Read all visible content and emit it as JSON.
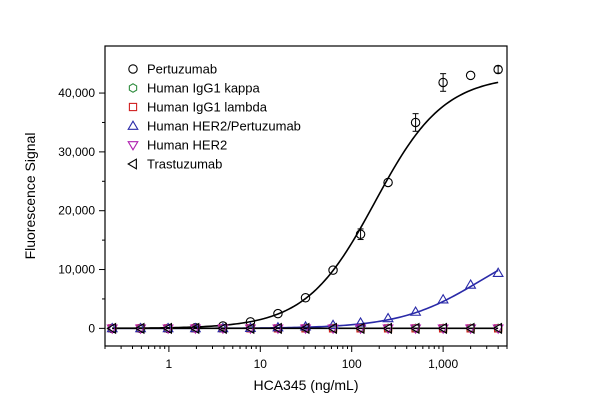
{
  "chart_data": {
    "type": "scatter",
    "xlabel": "HCA345 (ng/mL)",
    "ylabel": "Fluorescence Signal",
    "xscale": "log",
    "xlim": [
      0.2,
      5000
    ],
    "ylim": [
      -3000,
      48000
    ],
    "x_ticks": [
      1,
      10,
      100,
      1000
    ],
    "x_tick_labels": [
      "1",
      "10",
      "100",
      "1,000"
    ],
    "y_ticks": [
      0,
      10000,
      20000,
      30000,
      40000
    ],
    "y_tick_labels": [
      "0",
      "10,000",
      "20,000",
      "30,000",
      "40,000"
    ],
    "legend_position": "top-left",
    "x": [
      0.24,
      0.49,
      0.98,
      1.95,
      3.9,
      7.8,
      15.6,
      31.25,
      62.5,
      125,
      250,
      500,
      1000,
      2000,
      4000
    ],
    "series": [
      {
        "name": "Pertuzumab",
        "marker": "circle",
        "color": "#000000",
        "values": [
          0,
          0,
          0,
          100,
          400,
          1100,
          2500,
          5200,
          9900,
          16000,
          24800,
          35000,
          41800,
          43000,
          44000
        ],
        "errors": [
          0,
          0,
          0,
          0,
          0,
          0,
          0,
          0,
          0,
          900,
          0,
          1500,
          1500,
          0,
          600
        ],
        "fit": {
          "color": "#000000",
          "bottom": 0,
          "top": 43000,
          "ec50": 180,
          "hill": 1.15
        }
      },
      {
        "name": "Human IgG1 kappa",
        "marker": "hexagon",
        "color": "#2e8b3d",
        "values": [
          0,
          0,
          0,
          0,
          0,
          0,
          0,
          0,
          0,
          0,
          0,
          0,
          0,
          0,
          0
        ]
      },
      {
        "name": "Human IgG1 lambda",
        "marker": "square",
        "color": "#d02020",
        "values": [
          0,
          0,
          0,
          0,
          0,
          0,
          0,
          0,
          0,
          0,
          0,
          0,
          0,
          0,
          0
        ]
      },
      {
        "name": "Human HER2/Pertuzumab",
        "marker": "triangle-up",
        "color": "#2a2aa8",
        "values": [
          0,
          0,
          0,
          0,
          0,
          50,
          150,
          300,
          550,
          950,
          1700,
          2800,
          4900,
          7400,
          9400
        ],
        "fit": {
          "color": "#2a2aa8",
          "bottom": 0,
          "top": 16000,
          "ec50": 2500,
          "hill": 1.0
        }
      },
      {
        "name": "Human HER2",
        "marker": "triangle-down",
        "color": "#b020b0",
        "values": [
          0,
          0,
          0,
          0,
          0,
          0,
          0,
          0,
          0,
          0,
          0,
          0,
          0,
          0,
          0
        ]
      },
      {
        "name": "Trastuzumab",
        "marker": "triangle-left",
        "color": "#000000",
        "values": [
          0,
          0,
          0,
          0,
          0,
          0,
          0,
          0,
          0,
          0,
          0,
          0,
          0,
          0,
          0
        ],
        "fit": {
          "color": "#000000",
          "flat": 0
        }
      }
    ]
  }
}
